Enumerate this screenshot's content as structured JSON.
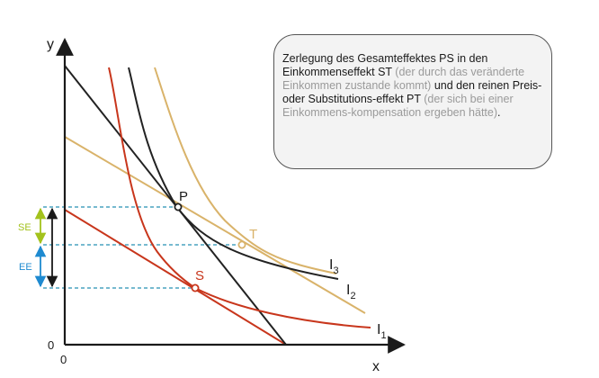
{
  "axes": {
    "y_label": "y",
    "x_label": "x",
    "origin_y": "0",
    "origin_x": "0"
  },
  "points": {
    "P": "P",
    "S": "S",
    "T": "T"
  },
  "curves": {
    "I1": "I",
    "I1_sub": "1",
    "I2": "I",
    "I2_sub": "2",
    "I3": "I",
    "I3_sub": "3"
  },
  "effects": {
    "SE": "SE",
    "EE": "EE"
  },
  "info": {
    "part1": "Zerlegung des Gesamteffektes PS in den Einkommenseffekt ST",
    "part2": " (der durch das veränderte Einkommen zustande kommt)",
    "part3": " und den reinen Preis- oder Substitutions-effekt PT",
    "part4": " (der sich bei einer Einkommens-kompensation ergeben hätte)",
    "part5": "."
  },
  "colors": {
    "axis": "#1a1a1a",
    "red": "#c8361c",
    "tan": "#d9b36a",
    "dark": "#222222",
    "dashed": "#4aa3c0",
    "se_green": "#a3c21c",
    "ee_blue": "#1e8ad0"
  }
}
